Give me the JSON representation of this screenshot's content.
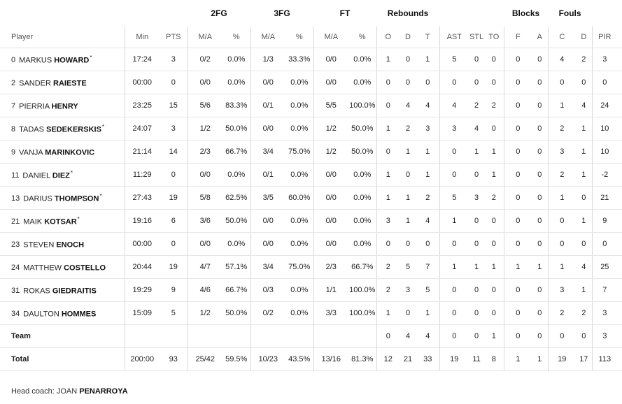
{
  "groups": {
    "fg2": "2FG",
    "fg3": "3FG",
    "ft": "FT",
    "rebounds": "Rebounds",
    "blocks": "Blocks",
    "fouls": "Fouls"
  },
  "columns": {
    "player": "Player",
    "min": "Min",
    "pts": "PTS",
    "fg2_ma": "M/A",
    "fg2_pct": "%",
    "fg3_ma": "M/A",
    "fg3_pct": "%",
    "ft_ma": "M/A",
    "ft_pct": "%",
    "reb_o": "O",
    "reb_d": "D",
    "reb_t": "T",
    "ast": "AST",
    "stl": "STL",
    "to": "TO",
    "blk_f": "F",
    "blk_a": "A",
    "foul_c": "C",
    "foul_d": "D",
    "pir": "PIR",
    "pm": "+/-"
  },
  "players": [
    {
      "num": "0",
      "first": "MARKUS",
      "last": "HOWARD",
      "star": "*",
      "min": "17:24",
      "pts": "3",
      "fg2_ma": "0/2",
      "fg2_pct": "0.0%",
      "fg3_ma": "1/3",
      "fg3_pct": "33.3%",
      "ft_ma": "0/0",
      "ft_pct": "0.0%",
      "o": "1",
      "d": "0",
      "t": "1",
      "ast": "5",
      "stl": "0",
      "to": "0",
      "bf": "0",
      "ba": "0",
      "fc": "4",
      "fd": "2",
      "pir": "3",
      "pm": ""
    },
    {
      "num": "2",
      "first": "SANDER",
      "last": "RAIESTE",
      "star": "",
      "min": "00:00",
      "pts": "0",
      "fg2_ma": "0/0",
      "fg2_pct": "0.0%",
      "fg3_ma": "0/0",
      "fg3_pct": "0.0%",
      "ft_ma": "0/0",
      "ft_pct": "0.0%",
      "o": "0",
      "d": "0",
      "t": "0",
      "ast": "0",
      "stl": "0",
      "to": "0",
      "bf": "0",
      "ba": "0",
      "fc": "0",
      "fd": "0",
      "pir": "0",
      "pm": ""
    },
    {
      "num": "7",
      "first": "PIERRIA",
      "last": "HENRY",
      "star": "",
      "min": "23:25",
      "pts": "15",
      "fg2_ma": "5/6",
      "fg2_pct": "83.3%",
      "fg3_ma": "0/1",
      "fg3_pct": "0.0%",
      "ft_ma": "5/5",
      "ft_pct": "100.0%",
      "o": "0",
      "d": "4",
      "t": "4",
      "ast": "4",
      "stl": "2",
      "to": "2",
      "bf": "0",
      "ba": "0",
      "fc": "1",
      "fd": "4",
      "pir": "24",
      "pm": ""
    },
    {
      "num": "8",
      "first": "TADAS",
      "last": "SEDEKERSKIS",
      "star": "*",
      "min": "24:07",
      "pts": "3",
      "fg2_ma": "1/2",
      "fg2_pct": "50.0%",
      "fg3_ma": "0/0",
      "fg3_pct": "0.0%",
      "ft_ma": "1/2",
      "ft_pct": "50.0%",
      "o": "1",
      "d": "2",
      "t": "3",
      "ast": "3",
      "stl": "4",
      "to": "0",
      "bf": "0",
      "ba": "0",
      "fc": "2",
      "fd": "1",
      "pir": "10",
      "pm": ""
    },
    {
      "num": "9",
      "first": "VANJA",
      "last": "MARINKOVIC",
      "star": "",
      "min": "21:14",
      "pts": "14",
      "fg2_ma": "2/3",
      "fg2_pct": "66.7%",
      "fg3_ma": "3/4",
      "fg3_pct": "75.0%",
      "ft_ma": "1/2",
      "ft_pct": "50.0%",
      "o": "0",
      "d": "1",
      "t": "1",
      "ast": "0",
      "stl": "1",
      "to": "1",
      "bf": "0",
      "ba": "0",
      "fc": "3",
      "fd": "1",
      "pir": "10",
      "pm": ""
    },
    {
      "num": "11",
      "first": "DANIEL",
      "last": "DIEZ",
      "star": "*",
      "min": "11:29",
      "pts": "0",
      "fg2_ma": "0/0",
      "fg2_pct": "0.0%",
      "fg3_ma": "0/1",
      "fg3_pct": "0.0%",
      "ft_ma": "0/0",
      "ft_pct": "0.0%",
      "o": "1",
      "d": "0",
      "t": "1",
      "ast": "0",
      "stl": "0",
      "to": "1",
      "bf": "0",
      "ba": "0",
      "fc": "2",
      "fd": "1",
      "pir": "-2",
      "pm": ""
    },
    {
      "num": "13",
      "first": "DARIUS",
      "last": "THOMPSON",
      "star": "*",
      "min": "27:43",
      "pts": "19",
      "fg2_ma": "5/8",
      "fg2_pct": "62.5%",
      "fg3_ma": "3/5",
      "fg3_pct": "60.0%",
      "ft_ma": "0/0",
      "ft_pct": "0.0%",
      "o": "1",
      "d": "1",
      "t": "2",
      "ast": "5",
      "stl": "3",
      "to": "2",
      "bf": "0",
      "ba": "0",
      "fc": "1",
      "fd": "0",
      "pir": "21",
      "pm": ""
    },
    {
      "num": "21",
      "first": "MAIK",
      "last": "KOTSAR",
      "star": "*",
      "min": "19:16",
      "pts": "6",
      "fg2_ma": "3/6",
      "fg2_pct": "50.0%",
      "fg3_ma": "0/0",
      "fg3_pct": "0.0%",
      "ft_ma": "0/0",
      "ft_pct": "0.0%",
      "o": "3",
      "d": "1",
      "t": "4",
      "ast": "1",
      "stl": "0",
      "to": "0",
      "bf": "0",
      "ba": "0",
      "fc": "0",
      "fd": "1",
      "pir": "9",
      "pm": ""
    },
    {
      "num": "23",
      "first": "STEVEN",
      "last": "ENOCH",
      "star": "",
      "min": "00:00",
      "pts": "0",
      "fg2_ma": "0/0",
      "fg2_pct": "0.0%",
      "fg3_ma": "0/0",
      "fg3_pct": "0.0%",
      "ft_ma": "0/0",
      "ft_pct": "0.0%",
      "o": "0",
      "d": "0",
      "t": "0",
      "ast": "0",
      "stl": "0",
      "to": "0",
      "bf": "0",
      "ba": "0",
      "fc": "0",
      "fd": "0",
      "pir": "0",
      "pm": ""
    },
    {
      "num": "24",
      "first": "MATTHEW",
      "last": "COSTELLO",
      "star": "",
      "min": "20:44",
      "pts": "19",
      "fg2_ma": "4/7",
      "fg2_pct": "57.1%",
      "fg3_ma": "3/4",
      "fg3_pct": "75.0%",
      "ft_ma": "2/3",
      "ft_pct": "66.7%",
      "o": "2",
      "d": "5",
      "t": "7",
      "ast": "1",
      "stl": "1",
      "to": "1",
      "bf": "1",
      "ba": "1",
      "fc": "1",
      "fd": "4",
      "pir": "25",
      "pm": ""
    },
    {
      "num": "31",
      "first": "ROKAS",
      "last": "GIEDRAITIS",
      "star": "",
      "min": "19:29",
      "pts": "9",
      "fg2_ma": "4/6",
      "fg2_pct": "66.7%",
      "fg3_ma": "0/3",
      "fg3_pct": "0.0%",
      "ft_ma": "1/1",
      "ft_pct": "100.0%",
      "o": "2",
      "d": "3",
      "t": "5",
      "ast": "0",
      "stl": "0",
      "to": "0",
      "bf": "0",
      "ba": "0",
      "fc": "3",
      "fd": "1",
      "pir": "7",
      "pm": ""
    },
    {
      "num": "34",
      "first": "DAULTON",
      "last": "HOMMES",
      "star": "",
      "min": "15:09",
      "pts": "5",
      "fg2_ma": "1/2",
      "fg2_pct": "50.0%",
      "fg3_ma": "0/2",
      "fg3_pct": "0.0%",
      "ft_ma": "3/3",
      "ft_pct": "100.0%",
      "o": "1",
      "d": "0",
      "t": "1",
      "ast": "0",
      "stl": "0",
      "to": "0",
      "bf": "0",
      "ba": "0",
      "fc": "2",
      "fd": "2",
      "pir": "3",
      "pm": ""
    }
  ],
  "team": {
    "label": "Team",
    "min": "",
    "pts": "",
    "fg2_ma": "",
    "fg2_pct": "",
    "fg3_ma": "",
    "fg3_pct": "",
    "ft_ma": "",
    "ft_pct": "",
    "o": "0",
    "d": "4",
    "t": "4",
    "ast": "0",
    "stl": "0",
    "to": "1",
    "bf": "0",
    "ba": "0",
    "fc": "0",
    "fd": "0",
    "pir": "3",
    "pm": ""
  },
  "total": {
    "label": "Total",
    "min": "200:00",
    "pts": "93",
    "fg2_ma": "25/42",
    "fg2_pct": "59.5%",
    "fg3_ma": "10/23",
    "fg3_pct": "43.5%",
    "ft_ma": "13/16",
    "ft_pct": "81.3%",
    "o": "12",
    "d": "21",
    "t": "33",
    "ast": "19",
    "stl": "11",
    "to": "8",
    "bf": "1",
    "ba": "1",
    "fc": "19",
    "fd": "17",
    "pir": "113",
    "pm": ""
  },
  "coach": {
    "label": "Head coach:",
    "first": "JOAN",
    "last": "PENARROYA"
  }
}
